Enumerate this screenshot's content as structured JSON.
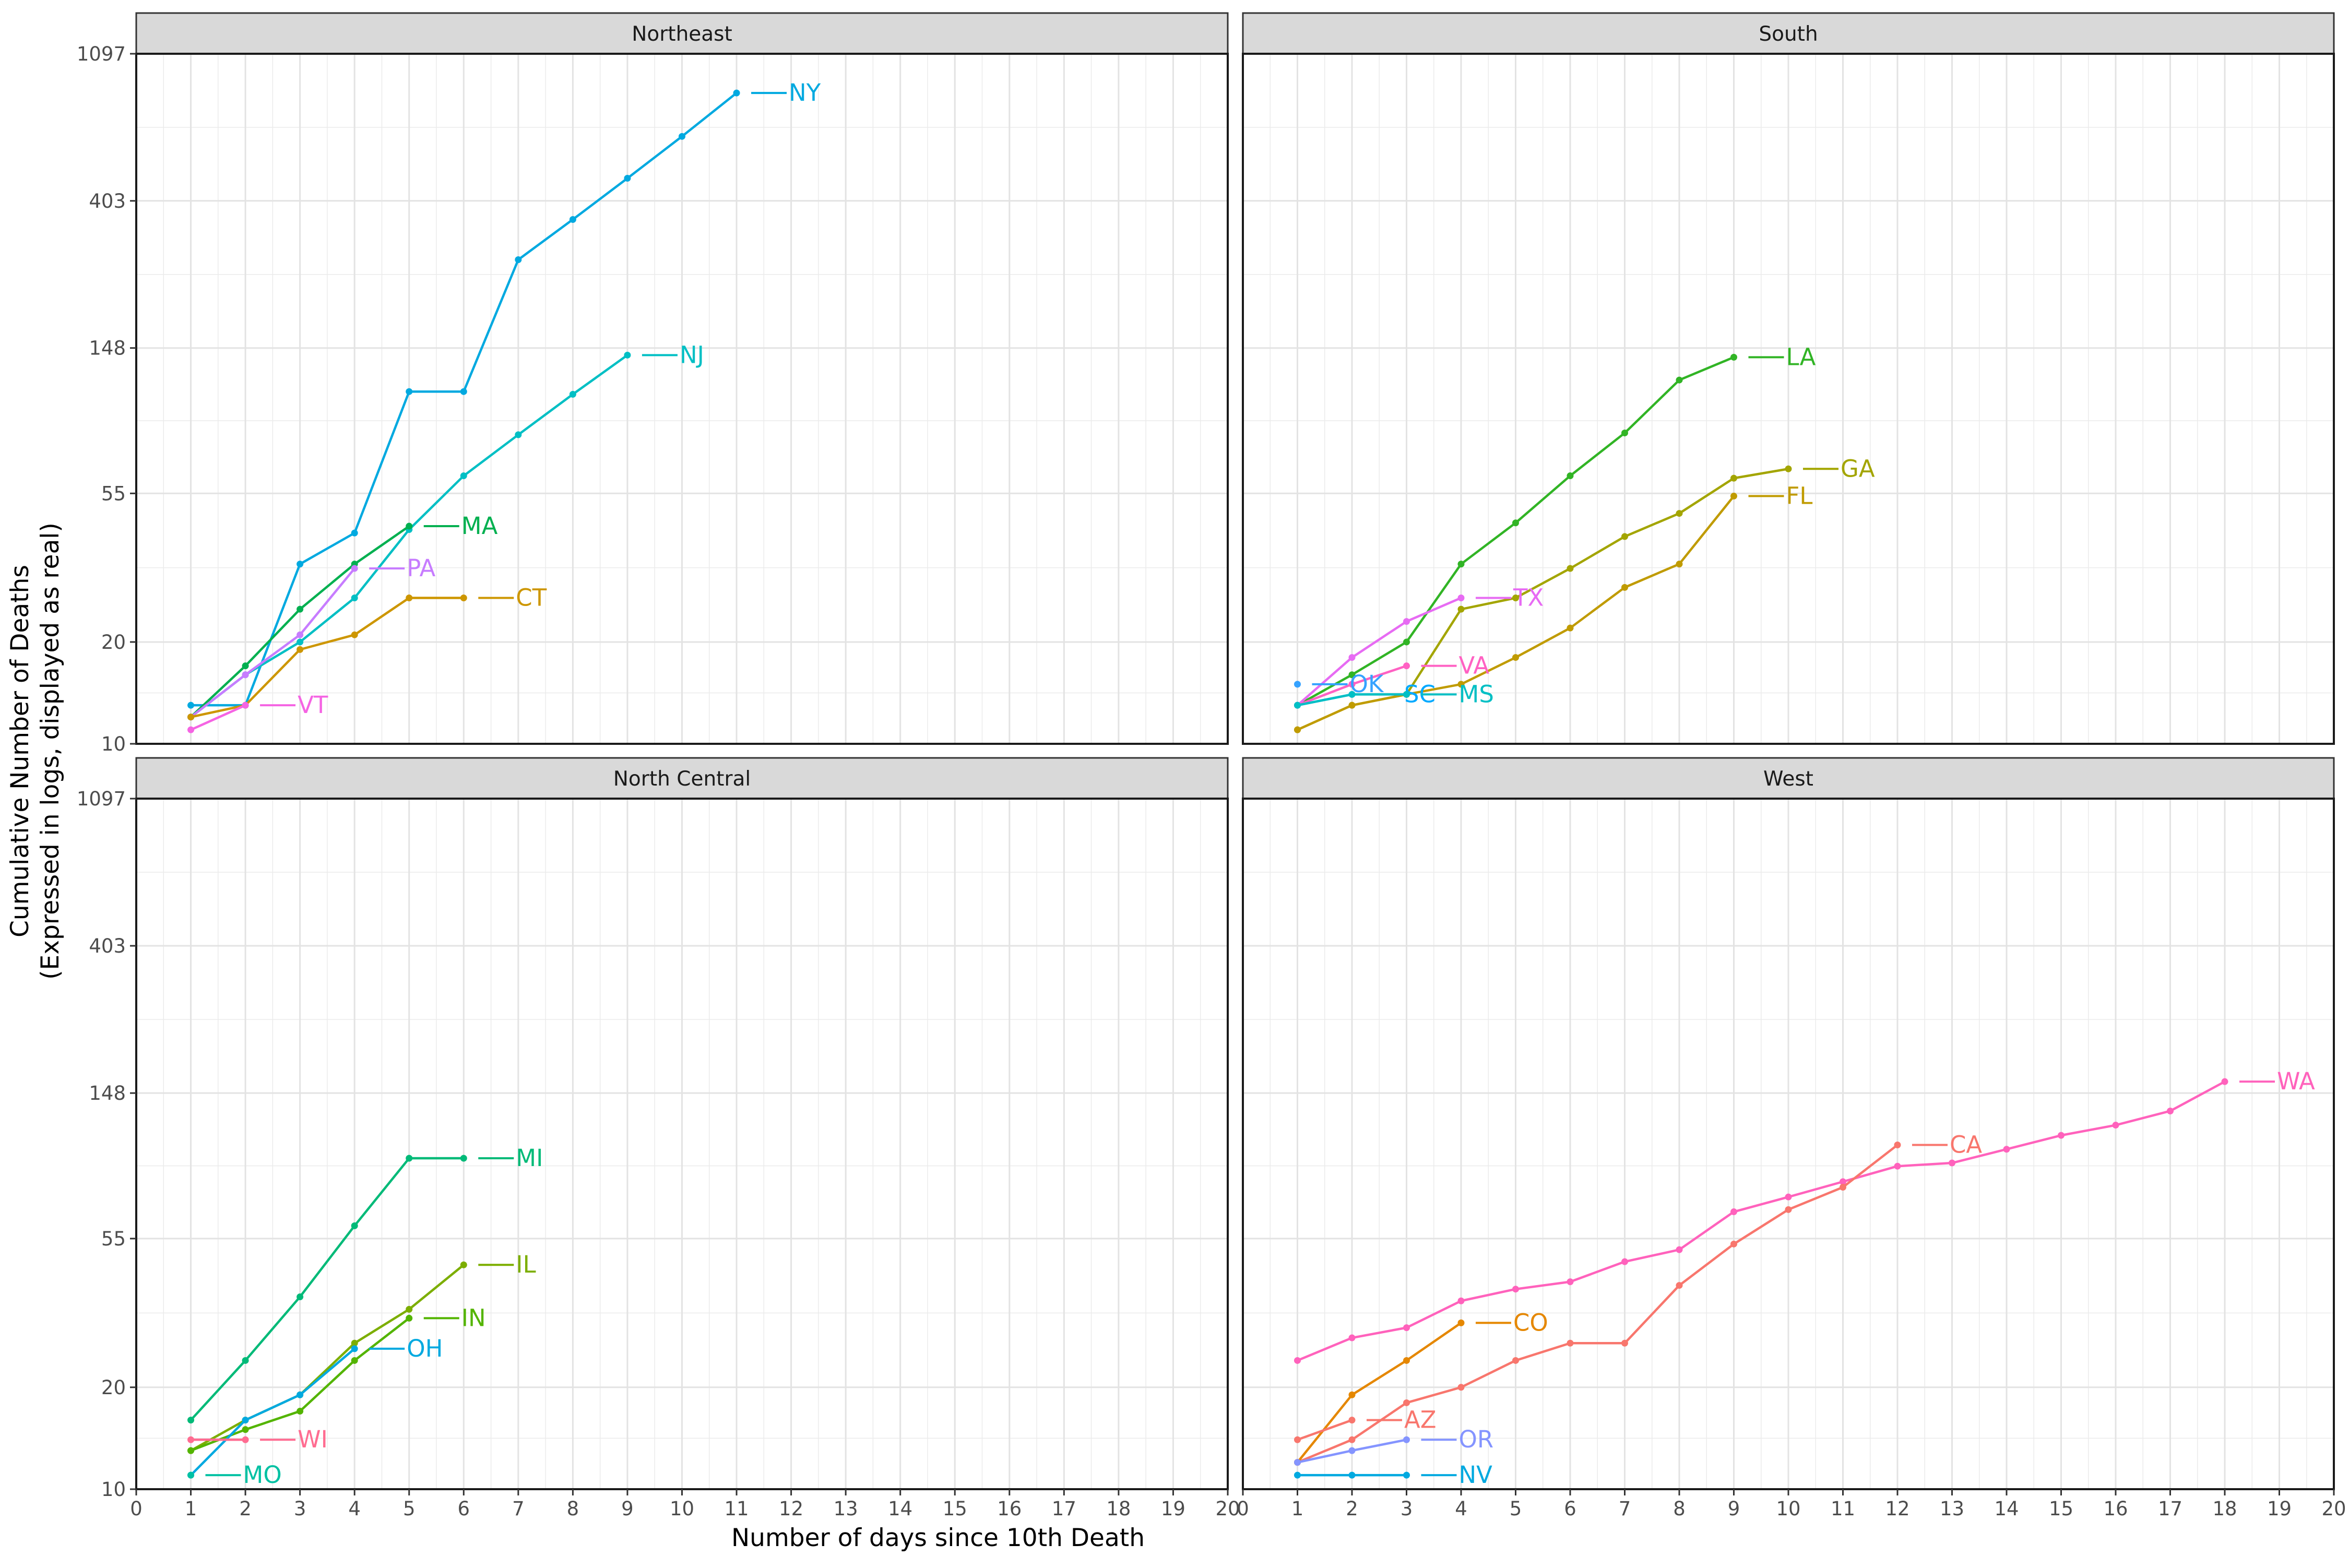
{
  "chart_data": {
    "type": "line",
    "xlabel": "Number of days since 10th Death",
    "ylabel_line1": "Cumulative Number of Deaths",
    "ylabel_line2": "(Expressed in logs, displayed as real)",
    "xlim": [
      0,
      20
    ],
    "ylim": [
      10,
      1097
    ],
    "y_scale": "log",
    "x_ticks": [
      0,
      1,
      2,
      3,
      4,
      5,
      6,
      7,
      8,
      9,
      10,
      11,
      12,
      13,
      14,
      15,
      16,
      17,
      18,
      19,
      20
    ],
    "y_ticks": [
      10,
      20,
      55,
      148,
      403,
      1097
    ],
    "grid": true,
    "panels": [
      {
        "title": "Northeast",
        "series": [
          {
            "name": "NY",
            "color": "#00A9E0",
            "x": [
              1,
              2,
              3,
              4,
              5,
              6,
              7,
              8,
              9,
              10,
              11
            ],
            "y": [
              13,
              13,
              34,
              42,
              110,
              110,
              270,
              355,
              470,
              625,
              840
            ]
          },
          {
            "name": "NJ",
            "color": "#00BFC4",
            "x": [
              1,
              2,
              3,
              4,
              5,
              6,
              7,
              8,
              9
            ],
            "y": [
              12,
              16,
              20,
              27,
              43,
              62,
              82,
              108,
              141
            ]
          },
          {
            "name": "MA",
            "color": "#00B050",
            "x": [
              1,
              2,
              3,
              4,
              5
            ],
            "y": [
              12,
              17,
              25,
              34,
              44
            ]
          },
          {
            "name": "PA",
            "color": "#C77CFF",
            "x": [
              1,
              2,
              3,
              4
            ],
            "y": [
              12,
              16,
              21,
              33
            ]
          },
          {
            "name": "CT",
            "color": "#CD9600",
            "x": [
              1,
              2,
              3,
              4,
              5,
              6
            ],
            "y": [
              12,
              13,
              19,
              21,
              27,
              27
            ]
          },
          {
            "name": "VT",
            "color": "#F564E3",
            "x": [
              1,
              2
            ],
            "y": [
              11,
              13
            ]
          }
        ]
      },
      {
        "title": "South",
        "series": [
          {
            "name": "LA",
            "color": "#31B425",
            "x": [
              1,
              2,
              3,
              4,
              5,
              6,
              7,
              8,
              9
            ],
            "y": [
              13,
              16,
              20,
              34,
              45,
              62,
              83,
              119,
              139
            ]
          },
          {
            "name": "GA",
            "color": "#A3A500",
            "x": [
              1,
              2,
              3,
              4,
              5,
              6,
              7,
              8,
              9,
              10
            ],
            "y": [
              11,
              13,
              14,
              25,
              27,
              33,
              41,
              48,
              61,
              65
            ]
          },
          {
            "name": "FL",
            "color": "#C09B00",
            "x": [
              1,
              2,
              3,
              4,
              5,
              6,
              7,
              8,
              9
            ],
            "y": [
              11,
              13,
              14,
              15,
              18,
              22,
              29,
              34,
              54
            ]
          },
          {
            "name": "TX",
            "color": "#E76BF3",
            "x": [
              1,
              2,
              3,
              4
            ],
            "y": [
              13,
              18,
              23,
              27
            ]
          },
          {
            "name": "VA",
            "color": "#FF61C3",
            "x": [
              1,
              2,
              3
            ],
            "y": [
              13,
              15,
              17
            ]
          },
          {
            "name": "OK",
            "color": "#35A2FF",
            "x": [
              1
            ],
            "y": [
              15
            ]
          },
          {
            "name": "SC",
            "color": "#00A9FF",
            "x": [
              1,
              2
            ],
            "y": [
              13,
              14
            ]
          },
          {
            "name": "MS",
            "color": "#00BFC4",
            "x": [
              1,
              2,
              3
            ],
            "y": [
              13,
              14,
              14
            ]
          }
        ]
      },
      {
        "title": "North Central",
        "series": [
          {
            "name": "MI",
            "color": "#00BA78",
            "x": [
              1,
              2,
              3,
              4,
              5,
              6
            ],
            "y": [
              16,
              24,
              37,
              60,
              95,
              95
            ]
          },
          {
            "name": "IL",
            "color": "#7CAE00",
            "x": [
              1,
              2,
              3,
              4,
              5,
              6
            ],
            "y": [
              13,
              16,
              19,
              27,
              34,
              46
            ]
          },
          {
            "name": "IN",
            "color": "#53B400",
            "x": [
              1,
              2,
              3,
              4,
              5
            ],
            "y": [
              13,
              15,
              17,
              24,
              32
            ]
          },
          {
            "name": "OH",
            "color": "#00A9E0",
            "x": [
              1,
              2,
              3,
              4
            ],
            "y": [
              11,
              16,
              19,
              26
            ]
          },
          {
            "name": "WI",
            "color": "#FF6C91",
            "x": [
              1,
              2
            ],
            "y": [
              14,
              14
            ]
          },
          {
            "name": "MO",
            "color": "#00C1A3",
            "x": [
              1
            ],
            "y": [
              11
            ]
          }
        ]
      },
      {
        "title": "West",
        "series": [
          {
            "name": "WA",
            "color": "#FF62BC",
            "x": [
              1,
              2,
              3,
              4,
              5,
              6,
              7,
              8,
              9,
              10,
              11,
              12,
              13,
              14,
              15,
              16,
              17,
              18
            ],
            "y": [
              24,
              28,
              30,
              36,
              39,
              41,
              47,
              51,
              66,
              73,
              81,
              90,
              92,
              101,
              111,
              119,
              131,
              160
            ]
          },
          {
            "name": "CA",
            "color": "#F8766D",
            "x": [
              1,
              2,
              3,
              4,
              5,
              6,
              7,
              8,
              9,
              10,
              11,
              12
            ],
            "y": [
              12,
              14,
              18,
              20,
              24,
              27,
              27,
              40,
              53,
              67,
              78,
              104
            ]
          },
          {
            "name": "CO",
            "color": "#E58700",
            "x": [
              1,
              2,
              3,
              4
            ],
            "y": [
              12,
              19,
              24,
              31
            ]
          },
          {
            "name": "AZ",
            "color": "#F8766D",
            "x": [
              1,
              2
            ],
            "y": [
              14,
              16
            ]
          },
          {
            "name": "OR",
            "color": "#8494FF",
            "x": [
              1,
              2,
              3
            ],
            "y": [
              12,
              13,
              14
            ]
          },
          {
            "name": "NV",
            "color": "#00A9E0",
            "x": [
              1,
              2,
              3
            ],
            "y": [
              11,
              11,
              11
            ]
          }
        ]
      }
    ]
  }
}
